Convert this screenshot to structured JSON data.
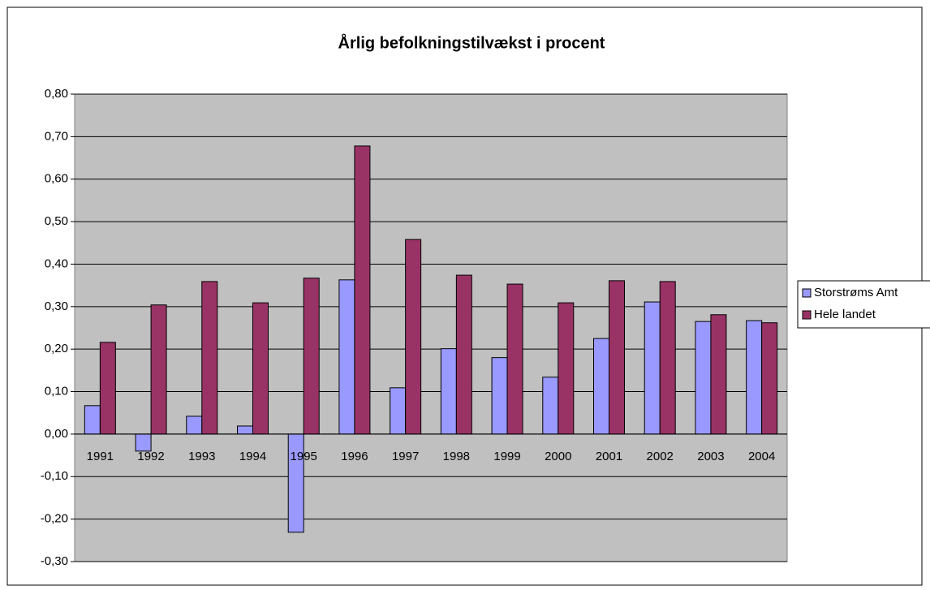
{
  "chart_data": {
    "type": "bar",
    "title": "Årlig befolkningstilvækst i procent",
    "categories": [
      "1991",
      "1992",
      "1993",
      "1994",
      "1995",
      "1996",
      "1997",
      "1998",
      "1999",
      "2000",
      "2001",
      "2002",
      "2003",
      "2004"
    ],
    "series": [
      {
        "name": "Storstrøms Amt",
        "color": "#9999ff",
        "values": [
          0.067,
          -0.04,
          0.042,
          0.019,
          -0.231,
          0.363,
          0.109,
          0.201,
          0.18,
          0.134,
          0.225,
          0.311,
          0.265,
          0.267
        ]
      },
      {
        "name": "Hele landet",
        "color": "#993366",
        "values": [
          0.216,
          0.304,
          0.359,
          0.309,
          0.367,
          0.678,
          0.458,
          0.374,
          0.353,
          0.309,
          0.361,
          0.359,
          0.281,
          0.262
        ]
      }
    ],
    "ylim": [
      -0.3,
      0.8
    ],
    "yticks": [
      {
        "value": -0.3,
        "label": "-0,30"
      },
      {
        "value": -0.2,
        "label": "-0,20"
      },
      {
        "value": -0.1,
        "label": "-0,10"
      },
      {
        "value": 0,
        "label": "0,00"
      },
      {
        "value": 0.1,
        "label": "0,10"
      },
      {
        "value": 0.2,
        "label": "0,20"
      },
      {
        "value": 0.3,
        "label": "0,30"
      },
      {
        "value": 0.4,
        "label": "0,40"
      },
      {
        "value": 0.5,
        "label": "0,50"
      },
      {
        "value": 0.6,
        "label": "0,60"
      },
      {
        "value": 0.7,
        "label": "0,70"
      },
      {
        "value": 0.8,
        "label": "0,80"
      }
    ],
    "grid": true,
    "legend": "right"
  }
}
